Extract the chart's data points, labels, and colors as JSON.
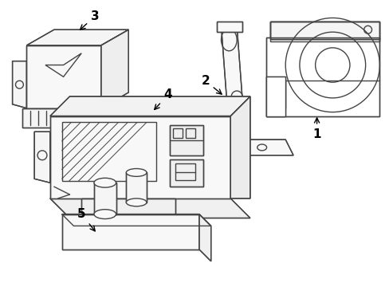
{
  "background_color": "#ffffff",
  "line_color": "#444444",
  "label_color": "#000000",
  "line_width": 1.0,
  "fig_width": 4.89,
  "fig_height": 3.6,
  "dpi": 100
}
